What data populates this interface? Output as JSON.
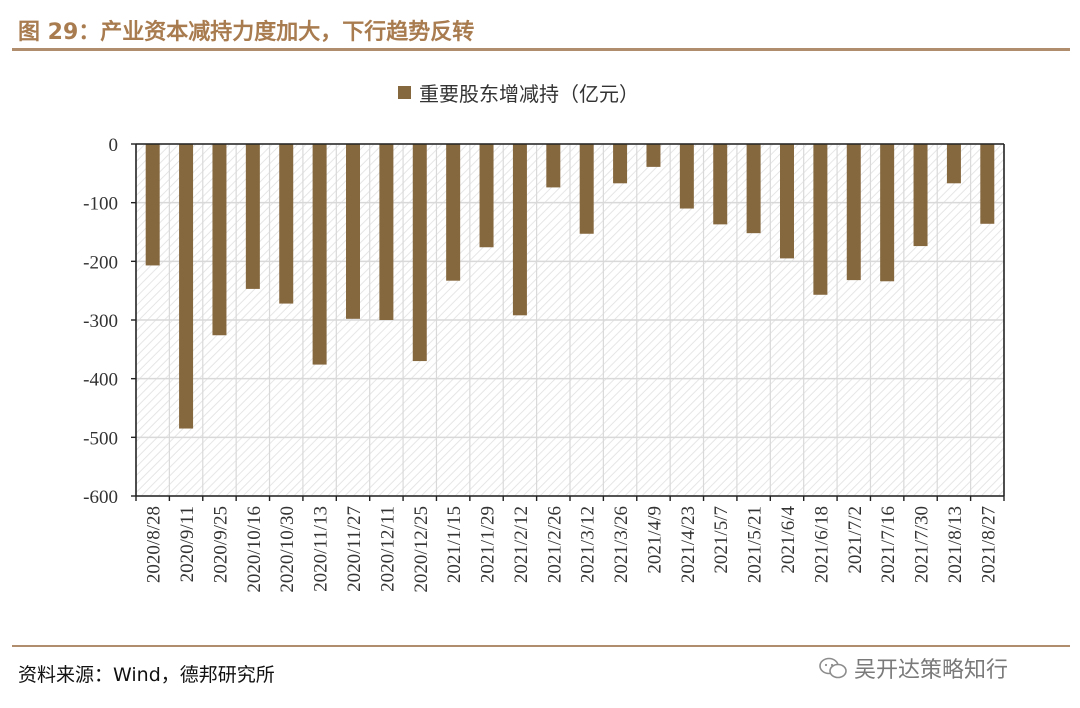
{
  "header": {
    "title": "图 29：产业资本减持力度加大，下行趋势反转"
  },
  "footer": {
    "source": "资料来源：Wind，德邦研究所",
    "watermark": "吴开达策略知行"
  },
  "colors": {
    "bar": "#86683f",
    "title": "#a97c50",
    "rule": "#b08d6c",
    "grid": "#d9d9d9",
    "hatch": "#e6e6e6"
  },
  "chart_data": {
    "type": "bar",
    "title": "",
    "xlabel": "",
    "ylabel": "",
    "ylim": [
      -600,
      0
    ],
    "yticks": [
      0,
      -100,
      -200,
      -300,
      -400,
      -500,
      -600
    ],
    "grid": true,
    "legend_position": "top-center",
    "categories": [
      "2020/8/28",
      "2020/9/11",
      "2020/9/25",
      "2020/10/16",
      "2020/10/30",
      "2020/11/13",
      "2020/11/27",
      "2020/12/11",
      "2020/12/25",
      "2021/1/15",
      "2021/1/29",
      "2021/2/12",
      "2021/2/26",
      "2021/3/12",
      "2021/3/26",
      "2021/4/9",
      "2021/4/23",
      "2021/5/7",
      "2021/5/21",
      "2021/6/4",
      "2021/6/18",
      "2021/7/2",
      "2021/7/16",
      "2021/7/30",
      "2021/8/13",
      "2021/8/27"
    ],
    "series": [
      {
        "name": "重要股东增减持（亿元）",
        "values": [
          -207,
          -485,
          -326,
          -247,
          -272,
          -376,
          -298,
          -300,
          -370,
          -233,
          -176,
          -292,
          -74,
          -153,
          -67,
          -39,
          -110,
          -137,
          -152,
          -195,
          -257,
          -232,
          -234,
          -174,
          -67,
          -136
        ]
      }
    ]
  }
}
